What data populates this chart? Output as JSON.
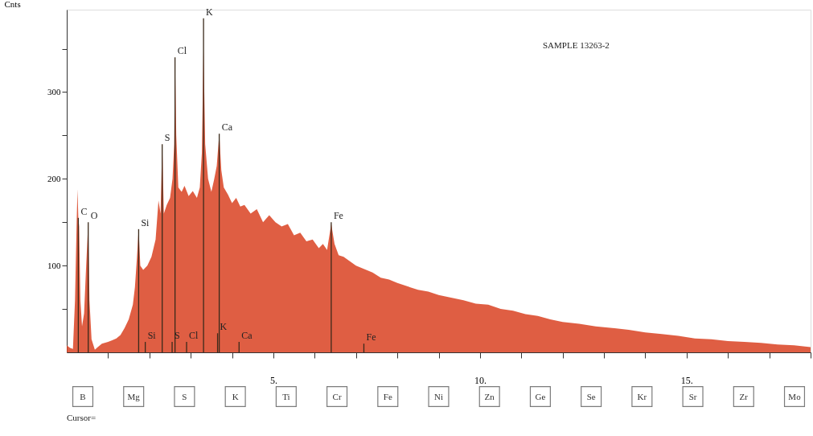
{
  "chart_data": {
    "type": "area",
    "ylabel": "Cnts",
    "x": [
      0.0,
      0.08,
      0.15,
      0.2,
      0.24,
      0.26,
      0.28,
      0.3,
      0.33,
      0.37,
      0.42,
      0.47,
      0.5,
      0.52,
      0.55,
      0.6,
      0.68,
      0.75,
      0.85,
      1.0,
      1.1,
      1.2,
      1.3,
      1.4,
      1.5,
      1.6,
      1.65,
      1.7,
      1.74,
      1.78,
      1.85,
      1.95,
      2.05,
      2.15,
      2.22,
      2.27,
      2.31,
      2.35,
      2.42,
      2.5,
      2.56,
      2.6,
      2.62,
      2.65,
      2.7,
      2.78,
      2.85,
      2.95,
      3.05,
      3.15,
      3.22,
      3.27,
      3.31,
      3.35,
      3.42,
      3.5,
      3.57,
      3.63,
      3.69,
      3.74,
      3.8,
      3.9,
      4.0,
      4.1,
      4.2,
      4.3,
      4.45,
      4.6,
      4.75,
      4.9,
      5.05,
      5.2,
      5.35,
      5.5,
      5.65,
      5.8,
      5.95,
      6.1,
      6.2,
      6.3,
      6.4,
      6.48,
      6.58,
      6.7,
      6.85,
      7.0,
      7.2,
      7.4,
      7.6,
      7.8,
      8.0,
      8.25,
      8.5,
      8.75,
      9.0,
      9.3,
      9.6,
      9.9,
      10.2,
      10.5,
      10.8,
      11.1,
      11.4,
      11.7,
      12.0,
      12.4,
      12.8,
      13.2,
      13.6,
      14.0,
      14.4,
      14.8,
      15.2,
      15.6,
      16.0,
      16.4,
      16.8,
      17.2,
      17.6,
      18.0
    ],
    "series": [
      {
        "color": "#d94222",
        "values": [
          8,
          5,
          4,
          60,
          150,
          188,
          155,
          145,
          60,
          30,
          45,
          100,
          130,
          149,
          60,
          15,
          3,
          6,
          10,
          12,
          14,
          16,
          20,
          28,
          38,
          55,
          75,
          110,
          142,
          100,
          95,
          100,
          110,
          130,
          175,
          160,
          240,
          160,
          170,
          178,
          200,
          240,
          339,
          250,
          190,
          185,
          192,
          180,
          186,
          178,
          190,
          230,
          350,
          240,
          200,
          185,
          200,
          215,
          252,
          210,
          190,
          182,
          172,
          178,
          168,
          170,
          160,
          165,
          150,
          158,
          150,
          145,
          148,
          135,
          138,
          128,
          130,
          120,
          125,
          118,
          148,
          125,
          112,
          110,
          105,
          100,
          96,
          92,
          86,
          84,
          80,
          76,
          72,
          70,
          66,
          63,
          60,
          56,
          55,
          50,
          48,
          44,
          42,
          38,
          35,
          33,
          30,
          28,
          26,
          23,
          21,
          19,
          16,
          15,
          13,
          12,
          11,
          9,
          8,
          6
        ]
      },
      {
        "type": "bar",
        "color": "#3a2a1a",
        "x": [
          0.28,
          0.52,
          1.74,
          1.9,
          2.31,
          2.55,
          2.62,
          2.9,
          3.31,
          3.65,
          3.69,
          4.17,
          6.4,
          7.19
        ],
        "values": [
          155,
          150,
          142,
          12,
          240,
          12,
          340,
          12,
          385,
          22,
          252,
          12,
          150,
          10
        ]
      }
    ],
    "xlim": [
      0,
      18
    ],
    "xticks": [
      {
        "value": 1,
        "label": null
      },
      {
        "value": 2,
        "label": null
      },
      {
        "value": 3,
        "label": null
      },
      {
        "value": 4,
        "label": null
      },
      {
        "value": 5,
        "label": "5."
      },
      {
        "value": 6,
        "label": null
      },
      {
        "value": 7,
        "label": null
      },
      {
        "value": 8,
        "label": null
      },
      {
        "value": 9,
        "label": null
      },
      {
        "value": 10,
        "label": "10."
      },
      {
        "value": 11,
        "label": null
      },
      {
        "value": 12,
        "label": null
      },
      {
        "value": 13,
        "label": null
      },
      {
        "value": 14,
        "label": null
      },
      {
        "value": 15,
        "label": "15."
      },
      {
        "value": 16,
        "label": null
      },
      {
        "value": 17,
        "label": null
      },
      {
        "value": 18,
        "label": null
      }
    ],
    "ylim": [
      0,
      395
    ],
    "yticks": [
      {
        "value": 50,
        "label": null
      },
      100,
      {
        "value": 150,
        "label": null
      },
      200,
      {
        "value": 250,
        "label": null
      },
      300,
      {
        "value": 350,
        "label": null
      }
    ],
    "grid": false,
    "annotations": [
      "SAMPLE 13263-2",
      "Cursor=",
      {
        "text": "C",
        "x": 0.28,
        "y": 155
      },
      {
        "text": "O",
        "x": 0.52,
        "y": 150
      },
      {
        "text": "Si",
        "x": 1.74,
        "y": 142
      },
      {
        "text": "S",
        "x": 2.31,
        "y": 240
      },
      {
        "text": "Cl",
        "x": 2.62,
        "y": 340
      },
      {
        "text": "K",
        "x": 3.31,
        "y": 385
      },
      {
        "text": "Ca",
        "x": 3.69,
        "y": 252
      },
      {
        "text": "Fe",
        "x": 6.4,
        "y": 150
      },
      {
        "text": "Si",
        "x": 1.9,
        "y": 12
      },
      {
        "text": "S",
        "x": 2.55,
        "y": 12
      },
      {
        "text": "Cl",
        "x": 2.9,
        "y": 12
      },
      {
        "text": "K",
        "x": 3.65,
        "y": 22
      },
      {
        "text": "Ca",
        "x": 4.17,
        "y": 12
      },
      {
        "text": "Fe",
        "x": 7.19,
        "y": 10
      },
      "B",
      "Mg",
      "S",
      "K",
      "Ti",
      "Cr",
      "Fe",
      "Ni",
      "Zn",
      "Ge",
      "Se",
      "Kr",
      "Sr",
      "Zr",
      "Mo"
    ]
  }
}
